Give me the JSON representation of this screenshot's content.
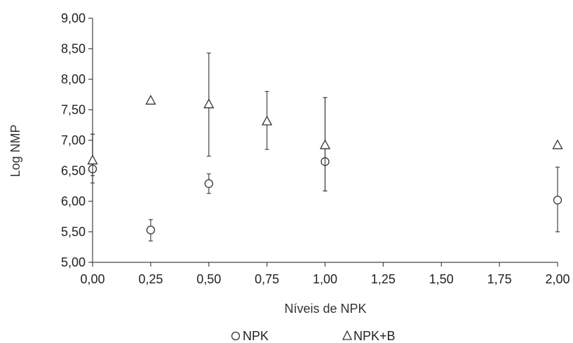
{
  "chart_data": {
    "type": "scatter",
    "xlabel": "Níveis de NPK",
    "ylabel": "Log NMP",
    "xlim": [
      0,
      2
    ],
    "ylim": [
      5,
      9
    ],
    "x_ticks": [
      0,
      0.25,
      0.5,
      0.75,
      1.0,
      1.25,
      1.5,
      1.75,
      2.0
    ],
    "x_tick_labels": [
      "0,00",
      "0,25",
      "0,50",
      "0,75",
      "1,00",
      "1,25",
      "1,50",
      "1,75",
      "2,00"
    ],
    "y_ticks": [
      5,
      5.5,
      6,
      6.5,
      7,
      7.5,
      8,
      8.5,
      9
    ],
    "y_tick_labels": [
      "5,00",
      "5,50",
      "6,00",
      "6,50",
      "7,00",
      "7,50",
      "8,00",
      "8,50",
      "9,00"
    ],
    "grid": false,
    "legend_position": "bottom",
    "series": [
      {
        "name": "NPK",
        "marker": "circle",
        "legend_label": "NPK",
        "points": [
          {
            "x": 0.0,
            "y": 6.53,
            "err_low": 6.3,
            "err_high": 7.1
          },
          {
            "x": 0.25,
            "y": 5.53,
            "err_low": 5.35,
            "err_high": 5.7
          },
          {
            "x": 0.5,
            "y": 6.29,
            "err_low": 6.13,
            "err_high": 6.45
          },
          {
            "x": 1.0,
            "y": 6.65,
            "err_low": 6.17,
            "err_high": 7.7
          },
          {
            "x": 2.0,
            "y": 6.02,
            "err_low": 5.5,
            "err_high": 6.56
          }
        ]
      },
      {
        "name": "NPK+B",
        "marker": "triangle",
        "legend_label": "NPK+B",
        "points": [
          {
            "x": 0.0,
            "y": 6.67,
            "err_low": 6.42,
            "err_high": 7.1
          },
          {
            "x": 0.25,
            "y": 7.65,
            "err_low": null,
            "err_high": null
          },
          {
            "x": 0.5,
            "y": 7.59,
            "err_low": 6.74,
            "err_high": 8.43
          },
          {
            "x": 0.75,
            "y": 7.31,
            "err_low": 6.85,
            "err_high": 7.8
          },
          {
            "x": 1.0,
            "y": 6.92,
            "err_low": 6.17,
            "err_high": 7.7
          },
          {
            "x": 2.0,
            "y": 6.92,
            "err_low": null,
            "err_high": null
          }
        ]
      }
    ]
  }
}
